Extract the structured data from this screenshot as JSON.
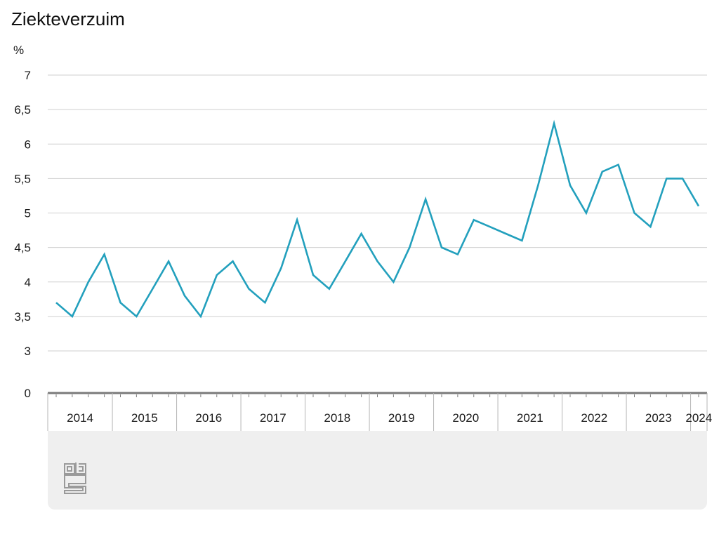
{
  "chart_data": {
    "type": "line",
    "title": "Ziekteverzuim",
    "ylabel": "%",
    "xlabel": "",
    "ylim": [
      0,
      7
    ],
    "axis_break": [
      0,
      3
    ],
    "y_ticks": [
      "0",
      "3",
      "3,5",
      "4",
      "4,5",
      "5",
      "5,5",
      "6",
      "6,5",
      "7"
    ],
    "y_tick_values": [
      0,
      3,
      3.5,
      4,
      4.5,
      5,
      5.5,
      6,
      6.5,
      7
    ],
    "years": [
      "2014",
      "2015",
      "2016",
      "2017",
      "2018",
      "2019",
      "2020",
      "2021",
      "2022",
      "2023",
      "2024"
    ],
    "x": [
      "2014 Q1",
      "2014 Q2",
      "2014 Q3",
      "2014 Q4",
      "2015 Q1",
      "2015 Q2",
      "2015 Q3",
      "2015 Q4",
      "2016 Q1",
      "2016 Q2",
      "2016 Q3",
      "2016 Q4",
      "2017 Q1",
      "2017 Q2",
      "2017 Q3",
      "2017 Q4",
      "2018 Q1",
      "2018 Q2",
      "2018 Q3",
      "2018 Q4",
      "2019 Q1",
      "2019 Q2",
      "2019 Q3",
      "2019 Q4",
      "2020 Q1",
      "2020 Q2",
      "2020 Q3",
      "2020 Q4",
      "2021 Q1",
      "2021 Q2",
      "2021 Q3",
      "2021 Q4",
      "2022 Q1",
      "2022 Q2",
      "2022 Q3",
      "2022 Q4",
      "2023 Q1",
      "2023 Q2",
      "2023 Q3",
      "2023 Q4",
      "2024 Q1"
    ],
    "series": [
      {
        "values": [
          3.7,
          3.5,
          4.0,
          4.4,
          3.7,
          3.5,
          3.9,
          4.3,
          3.8,
          3.5,
          4.1,
          4.3,
          3.9,
          3.7,
          4.2,
          4.9,
          4.1,
          3.9,
          4.3,
          4.7,
          4.3,
          4.0,
          4.5,
          5.2,
          4.5,
          4.4,
          4.9,
          4.8,
          4.7,
          4.6,
          5.4,
          6.3,
          5.4,
          5.0,
          5.6,
          5.7,
          5.0,
          4.8,
          5.5,
          5.5,
          5.1
        ],
        "color": "#23a0bd"
      }
    ],
    "grid": true,
    "legend": "none"
  },
  "colors": {
    "line": "#23a0bd",
    "grid": "#cfcfcf",
    "axis": "#7a7a7a",
    "footer_bg": "#efefef",
    "logo": "#9a9a9a"
  },
  "logo": {
    "icon": "cbs-logo-icon"
  }
}
